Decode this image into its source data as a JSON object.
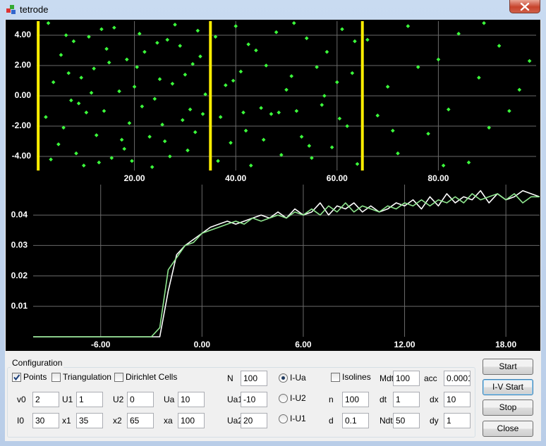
{
  "window": {
    "title": "tetrode"
  },
  "chart_data": [
    {
      "type": "scatter",
      "x": [
        3,
        5,
        7,
        9,
        11,
        13,
        15,
        17,
        19,
        21,
        23,
        25,
        27,
        29,
        31,
        33,
        4,
        6,
        8,
        10,
        12,
        14,
        16,
        18,
        20,
        22,
        24,
        26,
        28,
        30,
        32,
        34,
        2.5,
        5.5,
        8.5,
        11.5,
        14.5,
        17.5,
        20.5,
        23.5,
        26.5,
        29.5,
        32.5,
        3.5,
        6.5,
        9.5,
        12.5,
        15.5,
        18.5,
        21.5,
        24.5,
        27.5,
        30.5,
        33.5,
        7.5,
        13.5,
        19.5,
        25.5,
        31.5,
        10.5,
        36,
        37,
        38,
        39,
        40,
        41,
        42,
        43,
        44,
        45,
        46,
        47,
        48,
        49,
        50,
        51,
        52,
        53,
        54,
        55,
        56,
        57,
        58,
        59,
        60,
        61,
        62,
        63,
        64,
        36.5,
        39.5,
        42.5,
        45.5,
        48.5,
        51.5,
        54.5,
        57.5,
        60.5,
        63.5,
        41.5,
        66,
        68,
        70,
        72,
        74,
        76,
        78,
        80,
        82,
        84,
        86,
        88,
        90,
        92,
        94,
        96,
        98,
        81,
        71,
        89
      ],
      "values": [
        4.8,
        -3.2,
        1.5,
        -0.5,
        3.9,
        -4.4,
        2.2,
        0.3,
        -1.8,
        4.1,
        -2.7,
        1.1,
        -4.0,
        3.3,
        -0.9,
        2.6,
        0.9,
        -2.1,
        3.6,
        -4.6,
        1.8,
        -1.0,
        4.5,
        -3.5,
        0.6,
        2.9,
        -0.2,
        -3.0,
        4.7,
        1.4,
        -2.4,
        0.1,
        -1.4,
        2.7,
        -3.8,
        0.2,
        3.1,
        -2.9,
        1.9,
        -4.7,
        3.7,
        -1.6,
        4.3,
        -4.2,
        4.0,
        1.2,
        -2.6,
        -4.1,
        2.4,
        -0.7,
        3.5,
        0.8,
        -3.6,
        -1.2,
        -0.3,
        4.4,
        -4.3,
        -1.9,
        2.1,
        -1.1,
        3.9,
        -1.4,
        0.7,
        -3.1,
        4.6,
        1.6,
        -2.3,
        -4.6,
        3.0,
        -0.8,
        2.0,
        -1.2,
        4.2,
        -3.9,
        0.4,
        1.3,
        -1.0,
        -2.7,
        3.8,
        -4.1,
        1.9,
        -0.6,
        2.9,
        -3.4,
        0.9,
        4.4,
        -2.0,
        1.5,
        -4.5,
        -4.3,
        1.0,
        3.4,
        -2.9,
        -1.1,
        4.8,
        -3.3,
        0.0,
        -1.5,
        3.6,
        -1.1,
        3.7,
        -1.3,
        0.6,
        -3.8,
        4.6,
        1.9,
        -2.5,
        2.4,
        -0.9,
        4.1,
        -4.4,
        1.2,
        -2.1,
        3.3,
        -1.0,
        0.4,
        2.3,
        -4.6,
        -2.3,
        4.8
      ],
      "color": "#3cff3c",
      "vlines": [
        1,
        35,
        65
      ],
      "vline_color": "#ffee00",
      "xlim": [
        0.7,
        99.3
      ],
      "ylim": [
        -4.93,
        4.93
      ],
      "xticks": [
        {
          "value": 20,
          "label": "20.00"
        },
        {
          "value": 40,
          "label": "40.00"
        },
        {
          "value": 60,
          "label": "60.00"
        },
        {
          "value": 80,
          "label": "80.00"
        }
      ],
      "yticks": [
        {
          "value": 4,
          "label": "4.00"
        },
        {
          "value": 2,
          "label": "2.00"
        },
        {
          "value": 0,
          "label": "0.00"
        },
        {
          "value": -2,
          "label": "-2.00"
        },
        {
          "value": -4,
          "label": "-4.00"
        }
      ],
      "grid": true
    },
    {
      "type": "line",
      "x": [
        -10,
        -9.5,
        -9,
        -8.5,
        -8,
        -7.5,
        -7,
        -6.5,
        -6,
        -5.5,
        -5,
        -4.5,
        -4,
        -3.5,
        -3,
        -2.5,
        -2,
        -1.5,
        -1,
        -0.5,
        0,
        0.5,
        1,
        1.5,
        2,
        2.5,
        3,
        3.5,
        4,
        4.5,
        5,
        5.5,
        6,
        6.5,
        7,
        7.5,
        8,
        8.5,
        9,
        9.5,
        10,
        10.5,
        11,
        11.5,
        12,
        12.5,
        13,
        13.5,
        14,
        14.5,
        15,
        15.5,
        16,
        16.5,
        17,
        17.5,
        18,
        18.5,
        19,
        19.5,
        20
      ],
      "series": [
        {
          "color": "#ffffff",
          "values": [
            0,
            0,
            0,
            0,
            0,
            0,
            0,
            0,
            0,
            0,
            0,
            0,
            0,
            0,
            0,
            0,
            0.015,
            0.027,
            0.03,
            0.032,
            0.034,
            0.036,
            0.037,
            0.038,
            0.037,
            0.038,
            0.039,
            0.04,
            0.039,
            0.041,
            0.039,
            0.042,
            0.04,
            0.041,
            0.044,
            0.04,
            0.043,
            0.042,
            0.044,
            0.041,
            0.043,
            0.041,
            0.042,
            0.044,
            0.043,
            0.045,
            0.042,
            0.046,
            0.043,
            0.047,
            0.044,
            0.046,
            0.045,
            0.048,
            0.044,
            0.047,
            0.045,
            0.046,
            0.048,
            0.047,
            0.046
          ]
        },
        {
          "color": "#8ee68e",
          "values": [
            0,
            0,
            0,
            0,
            0,
            0,
            0,
            0,
            0,
            0,
            0,
            0,
            0,
            0,
            0,
            0.003,
            0.022,
            0.026,
            0.03,
            0.031,
            0.034,
            0.035,
            0.036,
            0.037,
            0.038,
            0.037,
            0.039,
            0.038,
            0.039,
            0.04,
            0.039,
            0.041,
            0.04,
            0.042,
            0.04,
            0.043,
            0.041,
            0.044,
            0.041,
            0.043,
            0.042,
            0.041,
            0.043,
            0.042,
            0.044,
            0.043,
            0.045,
            0.043,
            0.045,
            0.044,
            0.046,
            0.044,
            0.047,
            0.045,
            0.046,
            0.047,
            0.045,
            0.047,
            0.044,
            0.046,
            0.046
          ]
        }
      ],
      "xlim": [
        -10,
        20
      ],
      "ylim": [
        0,
        0.05
      ],
      "xticks": [
        {
          "value": -6,
          "label": "-6.00"
        },
        {
          "value": 0,
          "label": "0.00"
        },
        {
          "value": 6,
          "label": "6.00"
        },
        {
          "value": 12,
          "label": "12.00"
        },
        {
          "value": 18,
          "label": "18.00"
        }
      ],
      "yticks": [
        0.01,
        0.02,
        0.03,
        0.04
      ],
      "grid": true
    }
  ],
  "config": {
    "group": "Configuration",
    "checkboxes": [
      {
        "label": "Points",
        "checked": true
      },
      {
        "label": "Triangulation",
        "checked": false
      },
      {
        "label": "Dirichlet Cells",
        "checked": false
      },
      {
        "label": "Isolines",
        "checked": false
      }
    ],
    "fields": [
      {
        "label": "v0",
        "value": 2
      },
      {
        "label": "U1",
        "value": 1
      },
      {
        "label": "U2",
        "value": 0
      },
      {
        "label": "Ua",
        "value": 10
      },
      {
        "label": "I0",
        "value": 30
      },
      {
        "label": "x1",
        "value": 35
      },
      {
        "label": "x2",
        "value": 65
      },
      {
        "label": "xa",
        "value": 100
      },
      {
        "label": "N",
        "value": 100
      },
      {
        "label": "Ua1",
        "value": -10
      },
      {
        "label": "Ua2",
        "value": 20
      },
      {
        "label": "n",
        "value": 100
      },
      {
        "label": "d",
        "value": 0.1
      },
      {
        "label": "Mdt",
        "value": 100
      },
      {
        "label": "dt",
        "value": 1
      },
      {
        "label": "Ndt",
        "value": 50
      },
      {
        "label": "acc",
        "value": 0.0001
      },
      {
        "label": "dx",
        "value": 10
      },
      {
        "label": "dy",
        "value": 1
      }
    ],
    "radios": [
      {
        "label": "I-Ua",
        "selected": true
      },
      {
        "label": "I-U2",
        "selected": false
      },
      {
        "label": "I-U1",
        "selected": false
      }
    ],
    "buttons": [
      "Start",
      "I-V Start",
      "Stop",
      "Close"
    ]
  }
}
